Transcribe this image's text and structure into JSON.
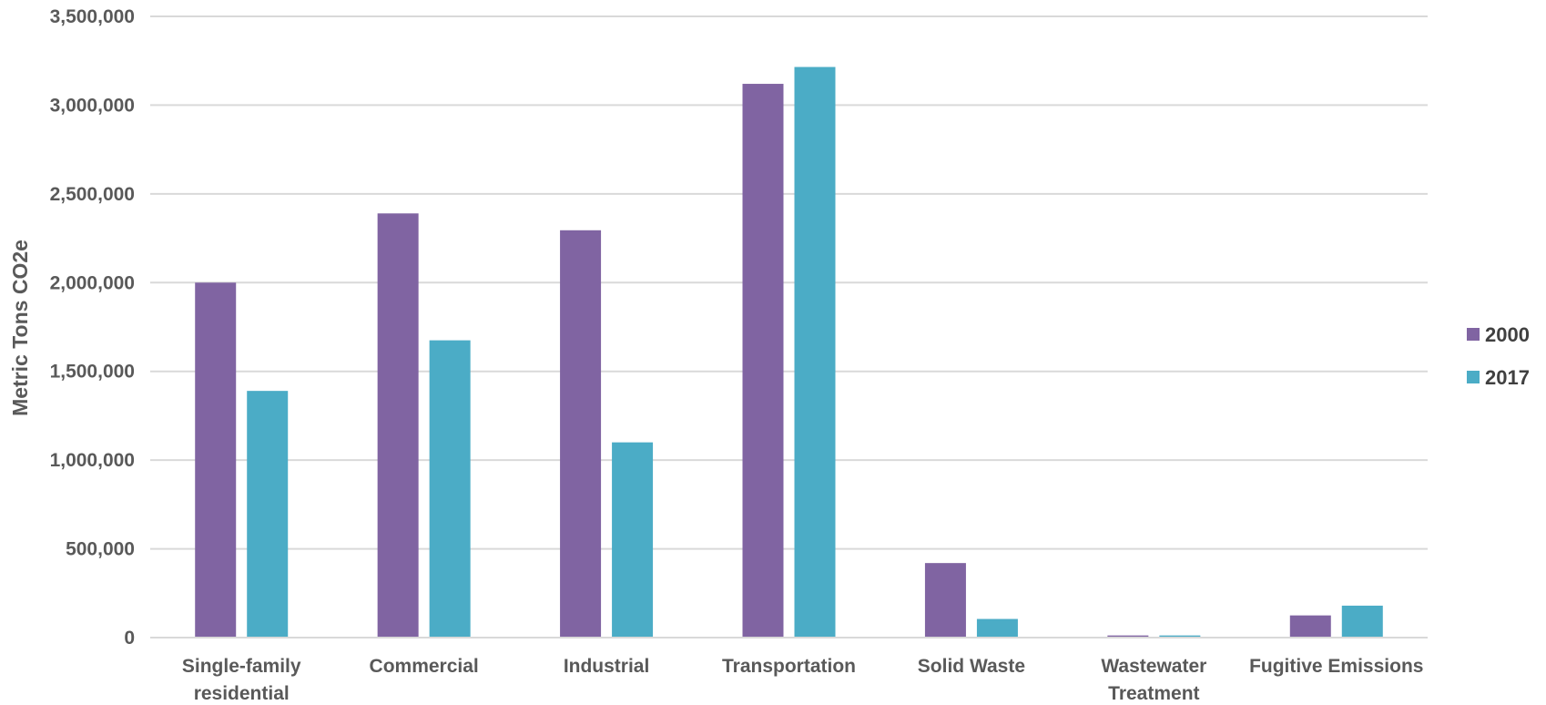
{
  "chart_data": {
    "type": "bar",
    "title": "",
    "xlabel": "",
    "ylabel": "Metric Tons CO2e",
    "ylim": [
      0,
      3500000
    ],
    "yticks": [
      0,
      500000,
      1000000,
      1500000,
      2000000,
      2500000,
      3000000,
      3500000
    ],
    "ytick_labels": [
      "0",
      "500,000",
      "1,000,000",
      "1,500,000",
      "2,000,000",
      "2,500,000",
      "3,000,000",
      "3,500,000"
    ],
    "grid": true,
    "legend_position": "right",
    "categories": [
      [
        "Single-family",
        "residential"
      ],
      [
        "Commercial"
      ],
      [
        "Industrial"
      ],
      [
        "Transportation"
      ],
      [
        "Solid Waste"
      ],
      [
        "Wastewater",
        "Treatment"
      ],
      [
        "Fugitive Emissions"
      ]
    ],
    "series": [
      {
        "name": "2000",
        "color": "#8064a2",
        "values": [
          2000000,
          2390000,
          2295000,
          3120000,
          420000,
          12000,
          125000
        ]
      },
      {
        "name": "2017",
        "color": "#4bacc6",
        "values": [
          1390000,
          1675000,
          1100000,
          3215000,
          105000,
          12000,
          180000
        ]
      }
    ],
    "gridline_color": "#d9d9d9"
  }
}
